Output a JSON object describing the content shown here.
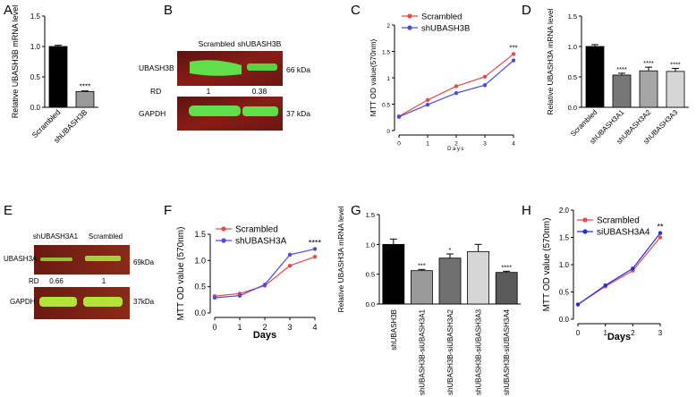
{
  "panel_letters": [
    "A",
    "B",
    "C",
    "D",
    "E",
    "F",
    "G",
    "H"
  ],
  "chart_data": [
    {
      "id": "A",
      "type": "bar",
      "categories": [
        "Scrambled",
        "shUBASH3B"
      ],
      "values": [
        1.0,
        0.26
      ],
      "errors": [
        0.02,
        0.01
      ],
      "colors": [
        "#000000",
        "#9a9a9a"
      ],
      "significance": [
        "",
        "****"
      ],
      "ylabel": "Relative UBASH3B mRNA level",
      "ylim": [
        0,
        1.5
      ],
      "yticks": [
        0.0,
        0.5,
        1.0,
        1.5
      ]
    },
    {
      "id": "C",
      "type": "line",
      "x": [
        0,
        1,
        2,
        3,
        4
      ],
      "series": [
        {
          "name": "Scrambled",
          "color": "#e84a4a",
          "values": [
            0.27,
            0.58,
            0.84,
            1.02,
            1.45
          ]
        },
        {
          "name": "shUBASH3B",
          "color": "#4a4ae8",
          "values": [
            0.26,
            0.49,
            0.71,
            0.86,
            1.33
          ]
        }
      ],
      "significance": {
        "x": 4,
        "label": "***"
      },
      "xlabel": "Days",
      "ylabel": "MTT OD value(570nm)",
      "ylim": [
        0,
        2.0
      ],
      "yticks": [
        0,
        0.5,
        1.0,
        1.5,
        2.0
      ],
      "xticks": [
        0,
        1,
        2,
        3,
        4
      ]
    },
    {
      "id": "D",
      "type": "bar",
      "categories": [
        "Scrambled",
        "shUBASH3A1",
        "shUBASH3A2",
        "shUBASH3A3"
      ],
      "values": [
        1.0,
        0.53,
        0.6,
        0.59
      ],
      "errors": [
        0.03,
        0.03,
        0.06,
        0.05
      ],
      "colors": [
        "#000000",
        "#777777",
        "#a6a6a6",
        "#d6d6d6"
      ],
      "significance": [
        "",
        "****",
        "****",
        "****"
      ],
      "ylabel": "Relative UBASH3A mRNA level",
      "ylim": [
        0,
        1.5
      ],
      "yticks": [
        0.0,
        0.5,
        1.0,
        1.5
      ]
    },
    {
      "id": "F",
      "type": "line",
      "x": [
        0,
        1,
        2,
        3,
        4
      ],
      "series": [
        {
          "name": "Scrambled",
          "color": "#e84a4a",
          "values": [
            0.32,
            0.37,
            0.52,
            0.9,
            1.07
          ]
        },
        {
          "name": "shUBASH3A",
          "color": "#4a4ae8",
          "values": [
            0.29,
            0.33,
            0.54,
            1.11,
            1.22
          ]
        }
      ],
      "significance": {
        "x": 4,
        "label": "****"
      },
      "xlabel": "Days",
      "ylabel": "MTT OD value (570nm)",
      "ylim": [
        0,
        1.5
      ],
      "yticks": [
        0.0,
        0.5,
        1.0,
        1.5
      ],
      "xticks": [
        0,
        1,
        2,
        3,
        4
      ]
    },
    {
      "id": "G",
      "type": "bar",
      "categories": [
        "shUBASH3B",
        "shUBASH3B-siUBASH3A1",
        "shUBASH3B-siUBASH3A2",
        "shUBASH3B-siUBASH3A3",
        "shUBASH3B-siUBASH3A4"
      ],
      "values": [
        1.0,
        0.56,
        0.77,
        0.88,
        0.53
      ],
      "errors": [
        0.09,
        0.02,
        0.07,
        0.12,
        0.02
      ],
      "colors": [
        "#000000",
        "#9a9a9a",
        "#707070",
        "#d6d6d6",
        "#5a5a5a"
      ],
      "significance": [
        "",
        "***",
        "*",
        "",
        "****"
      ],
      "ylabel": "Relative UBASH3A mRNA level",
      "ylim": [
        0,
        1.5
      ],
      "yticks": [
        0.0,
        0.5,
        1.0,
        1.5
      ]
    },
    {
      "id": "H",
      "type": "line",
      "x": [
        0,
        1,
        2,
        3
      ],
      "series": [
        {
          "name": "Scrambled",
          "color": "#e84a4a",
          "values": [
            0.27,
            0.6,
            0.89,
            1.5
          ]
        },
        {
          "name": "siUBASH3A4",
          "color": "#2b2bd6",
          "values": [
            0.27,
            0.62,
            0.93,
            1.58
          ]
        }
      ],
      "significance": {
        "x": 3,
        "label": "**"
      },
      "xlabel": "Days",
      "ylabel": "MTT OD value (570nm)",
      "ylim": [
        0,
        2.0
      ],
      "yticks": [
        0.0,
        0.5,
        1.0,
        1.5,
        2.0
      ],
      "xticks": [
        0,
        1,
        2,
        3
      ]
    }
  ],
  "blots": [
    {
      "id": "B",
      "lanes": [
        "Scrambled",
        "shUBASH3B"
      ],
      "rows": [
        {
          "label": "UBASH3B",
          "size": "66 kDa"
        },
        {
          "label": "GAPDH",
          "size": "37 kDa"
        }
      ],
      "rd_label": "RD",
      "rd_values": [
        "1",
        "0.38"
      ]
    },
    {
      "id": "E",
      "lanes": [
        "shUBASH3A1",
        "Scrambled"
      ],
      "rows": [
        {
          "label": "UBASH3A",
          "size": "69kDa"
        },
        {
          "label": "GAPDH",
          "size": "37kDa"
        }
      ],
      "rd_label": "RD",
      "rd_values": [
        "0.66",
        "1"
      ]
    }
  ]
}
